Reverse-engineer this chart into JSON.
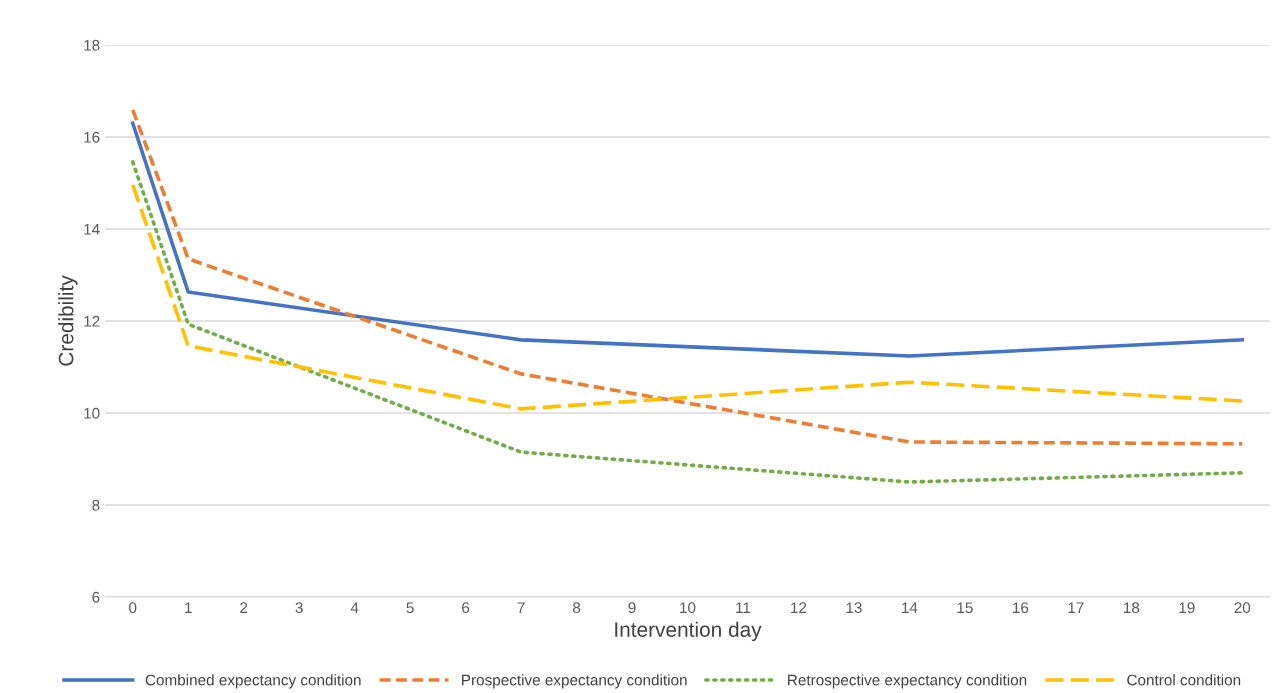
{
  "chart_data": {
    "type": "line",
    "xlabel": "Intervention day",
    "ylabel": "Credibility",
    "xlim": [
      -0.5,
      20.5
    ],
    "xticks": [
      0,
      1,
      2,
      3,
      4,
      5,
      6,
      7,
      8,
      9,
      10,
      11,
      12,
      13,
      14,
      15,
      16,
      17,
      18,
      19,
      20
    ],
    "ylim": [
      6,
      18
    ],
    "yticks": [
      6,
      8,
      10,
      12,
      14,
      16,
      18
    ],
    "grid": "y",
    "legend": "bottom",
    "marker": "none",
    "series": [
      {
        "name": "Combined expectancy condition",
        "color": "#4472c4",
        "line_style": "solid",
        "x": [
          0,
          1,
          7,
          14,
          20
        ],
        "values": [
          16.3,
          12.63,
          11.59,
          11.24,
          11.59
        ]
      },
      {
        "name": "Prospective expectancy condition",
        "color": "#ed7d31",
        "line_style": "dashed",
        "x": [
          0,
          1,
          7,
          14,
          20
        ],
        "values": [
          16.59,
          13.35,
          10.85,
          9.37,
          9.33
        ]
      },
      {
        "name": "Retrospective expectancy condition",
        "color": "#70ad47",
        "line_style": "dotted",
        "x": [
          0,
          1,
          7,
          14,
          20
        ],
        "values": [
          15.46,
          11.93,
          9.15,
          8.5,
          8.7
        ]
      },
      {
        "name": "Control condition",
        "color": "#ffc000",
        "line_style": "longdash",
        "x": [
          0,
          1,
          7,
          14,
          20
        ],
        "values": [
          14.96,
          11.46,
          10.09,
          10.67,
          10.26
        ]
      }
    ]
  }
}
